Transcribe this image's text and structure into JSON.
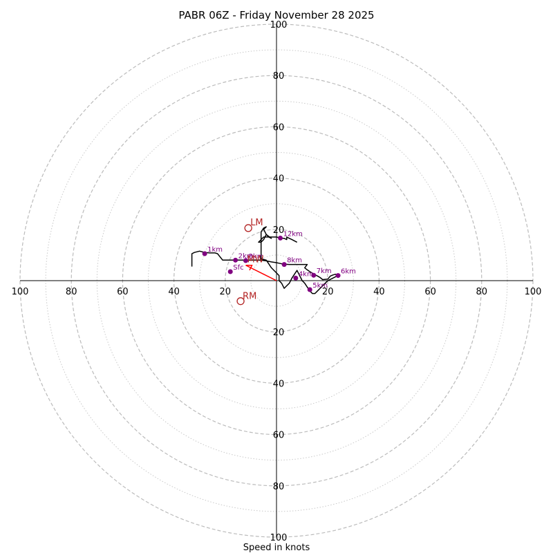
{
  "chart_data": {
    "type": "hodograph",
    "title": "PABR 06Z - Friday November 28 2025",
    "xlabel": "Speed in knots",
    "max_speed": 100,
    "ring_major": [
      20,
      40,
      60,
      80,
      100
    ],
    "ring_minor": [
      10,
      30,
      50,
      70,
      90
    ],
    "tick_labels": {
      "left": [
        "100",
        "80",
        "60",
        "40",
        "20"
      ],
      "right": [
        "20",
        "40",
        "60",
        "80",
        "100"
      ],
      "top": [
        "20",
        "40",
        "60",
        "80",
        "100"
      ],
      "bottom": [
        "20",
        "40",
        "60",
        "80",
        "100"
      ]
    },
    "hodograph_trace": [
      [
        -33,
        5.5
      ],
      [
        -33,
        7
      ],
      [
        -33,
        9
      ],
      [
        -33,
        10.5
      ],
      [
        -32,
        11
      ],
      [
        -30,
        11.5
      ],
      [
        -28,
        11
      ],
      [
        -26,
        10.8
      ],
      [
        -24,
        10.8
      ],
      [
        -23,
        10.5
      ],
      [
        -21,
        8
      ],
      [
        -20,
        8
      ],
      [
        -18,
        8
      ],
      [
        -16,
        8
      ],
      [
        -14,
        8
      ],
      [
        -12,
        8
      ],
      [
        -10,
        8
      ],
      [
        -8,
        8
      ],
      [
        -6,
        8
      ],
      [
        -4,
        7.7
      ],
      [
        -2,
        7.3
      ],
      [
        0,
        7
      ],
      [
        1,
        6.8
      ],
      [
        3,
        6.4
      ],
      [
        5,
        6.3
      ],
      [
        8,
        6.3
      ],
      [
        10,
        6.3
      ],
      [
        12,
        6.3
      ],
      [
        11,
        5
      ],
      [
        12,
        4.2
      ],
      [
        13,
        3.5
      ],
      [
        14,
        2.9
      ],
      [
        15,
        2.3
      ],
      [
        16,
        1.8
      ],
      [
        17,
        1.2
      ],
      [
        18,
        0.4
      ],
      [
        20,
        0.6
      ],
      [
        21,
        1.8
      ],
      [
        22,
        2.2
      ],
      [
        23,
        2.5
      ],
      [
        24,
        2
      ],
      [
        22,
        1
      ],
      [
        20,
        0
      ],
      [
        19,
        -1
      ],
      [
        18,
        -2
      ],
      [
        16,
        -4
      ],
      [
        15,
        -5
      ],
      [
        14,
        -5
      ],
      [
        13,
        -4
      ],
      [
        12,
        -2.5
      ],
      [
        11,
        -1
      ],
      [
        10,
        0
      ],
      [
        9,
        2
      ],
      [
        8,
        4
      ],
      [
        7,
        2.5
      ],
      [
        6,
        1
      ],
      [
        5,
        -1
      ],
      [
        4,
        -2
      ],
      [
        3,
        -3
      ],
      [
        2,
        -1
      ],
      [
        1,
        0
      ],
      [
        1,
        2
      ],
      [
        0,
        3
      ],
      [
        -2,
        5
      ],
      [
        -4,
        8
      ],
      [
        -6,
        8.5
      ],
      [
        -6,
        10
      ],
      [
        -6,
        12
      ],
      [
        -6,
        14
      ],
      [
        -6,
        17
      ],
      [
        -6,
        19
      ],
      [
        -5,
        20.5
      ],
      [
        -4,
        21
      ],
      [
        -5,
        20
      ],
      [
        -4,
        18
      ],
      [
        -3,
        17
      ],
      [
        -2,
        16.5
      ],
      [
        -4,
        18
      ],
      [
        -5,
        16
      ],
      [
        -6,
        15
      ],
      [
        -7,
        15
      ],
      [
        -6,
        16
      ],
      [
        -5,
        17
      ],
      [
        -3,
        17
      ],
      [
        0,
        17
      ],
      [
        2,
        16.5
      ],
      [
        3,
        16.5
      ],
      [
        4,
        16
      ],
      [
        4,
        17
      ],
      [
        5,
        16.5
      ],
      [
        6,
        16
      ],
      [
        8,
        15
      ]
    ],
    "height_labels": [
      {
        "label": "Sfc",
        "u": -18,
        "v": 3.5
      },
      {
        "label": "1km",
        "u": -28,
        "v": 10.5
      },
      {
        "label": "2km",
        "u": -16,
        "v": 8
      },
      {
        "label": "3km",
        "u": -12,
        "v": 7.8
      },
      {
        "label": "4km",
        "u": 7.5,
        "v": 1
      },
      {
        "label": "5km",
        "u": 13,
        "v": -3.5
      },
      {
        "label": "6km",
        "u": 24,
        "v": 2
      },
      {
        "label": "7km",
        "u": 14.5,
        "v": 2.1
      },
      {
        "label": "8km",
        "u": 3,
        "v": 6.3
      },
      {
        "label": "12km",
        "u": 1.5,
        "v": 16.6
      }
    ],
    "storm_motion": {
      "lm": {
        "label": "LM",
        "u": -11,
        "v": 20.5
      },
      "rm": {
        "label": "RM",
        "u": -14,
        "v": -8
      },
      "mw": {
        "label": "MW",
        "u": -12,
        "v": 6
      }
    },
    "colors": {
      "trace": "#000000",
      "height_marker": "#800080",
      "storm": "#b22222",
      "mean_wind": "#ff0000",
      "ring": "#bbbbbb",
      "axis": "#000000"
    }
  }
}
